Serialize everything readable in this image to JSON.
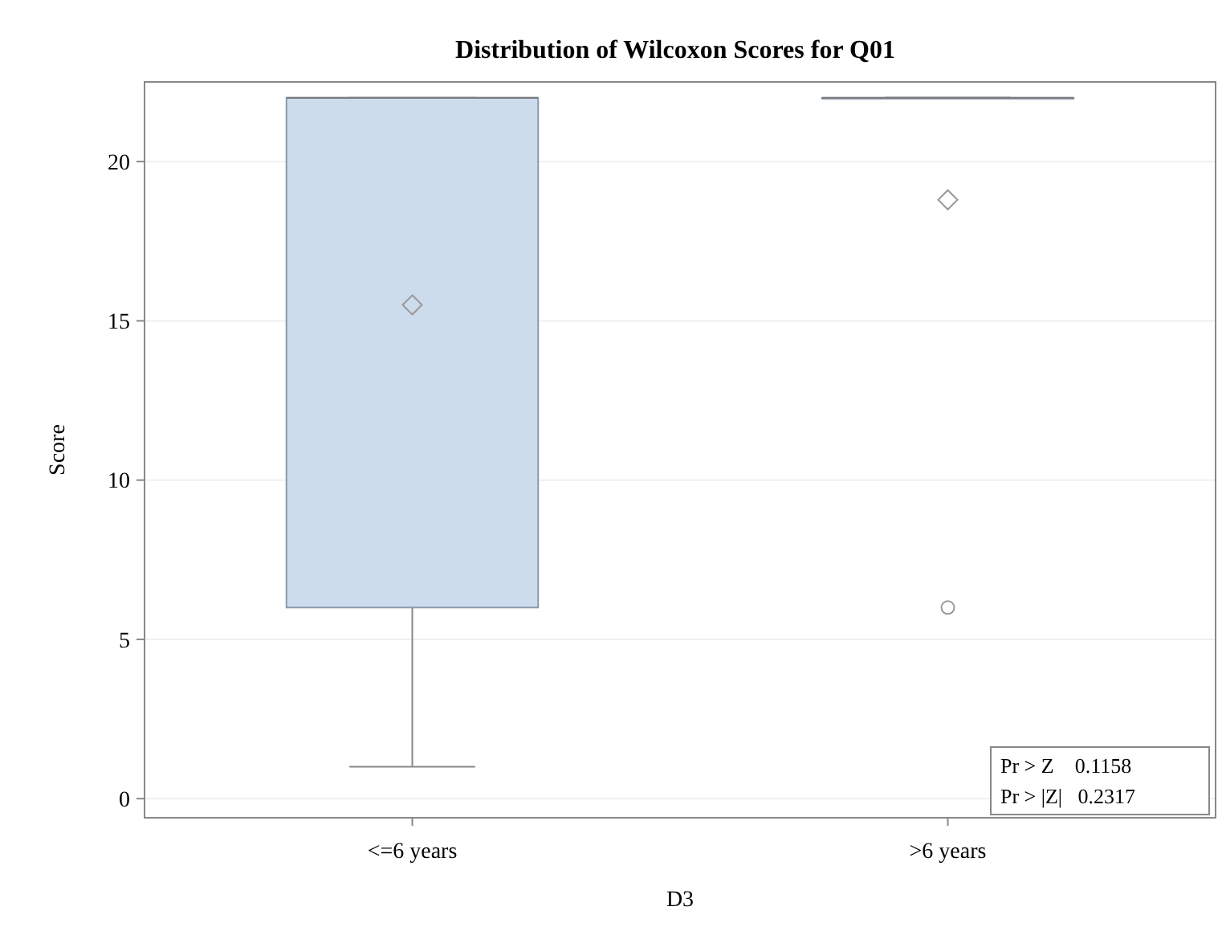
{
  "chart_data": {
    "type": "box",
    "title": "Distribution of Wilcoxon Scores for Q01",
    "xlabel": "D3",
    "ylabel": "Score",
    "categories": [
      "<=6 years",
      ">6 years"
    ],
    "boxes": [
      {
        "low": 1,
        "q1": 6,
        "median": 22,
        "q3": 22,
        "high": 22,
        "mean": 15.5
      },
      {
        "low": 22,
        "q1": 22,
        "median": 22,
        "q3": 22,
        "high": 22,
        "mean": 18.8,
        "outliers": [
          6
        ]
      }
    ],
    "color": "#cddcec",
    "ylim": [
      -0.6,
      22.5
    ],
    "yticks": [
      0,
      5,
      10,
      15,
      20
    ],
    "grid": "y",
    "annotations": [
      "Pr > Z    0.1158",
      "Pr > |Z|   0.2317"
    ]
  }
}
